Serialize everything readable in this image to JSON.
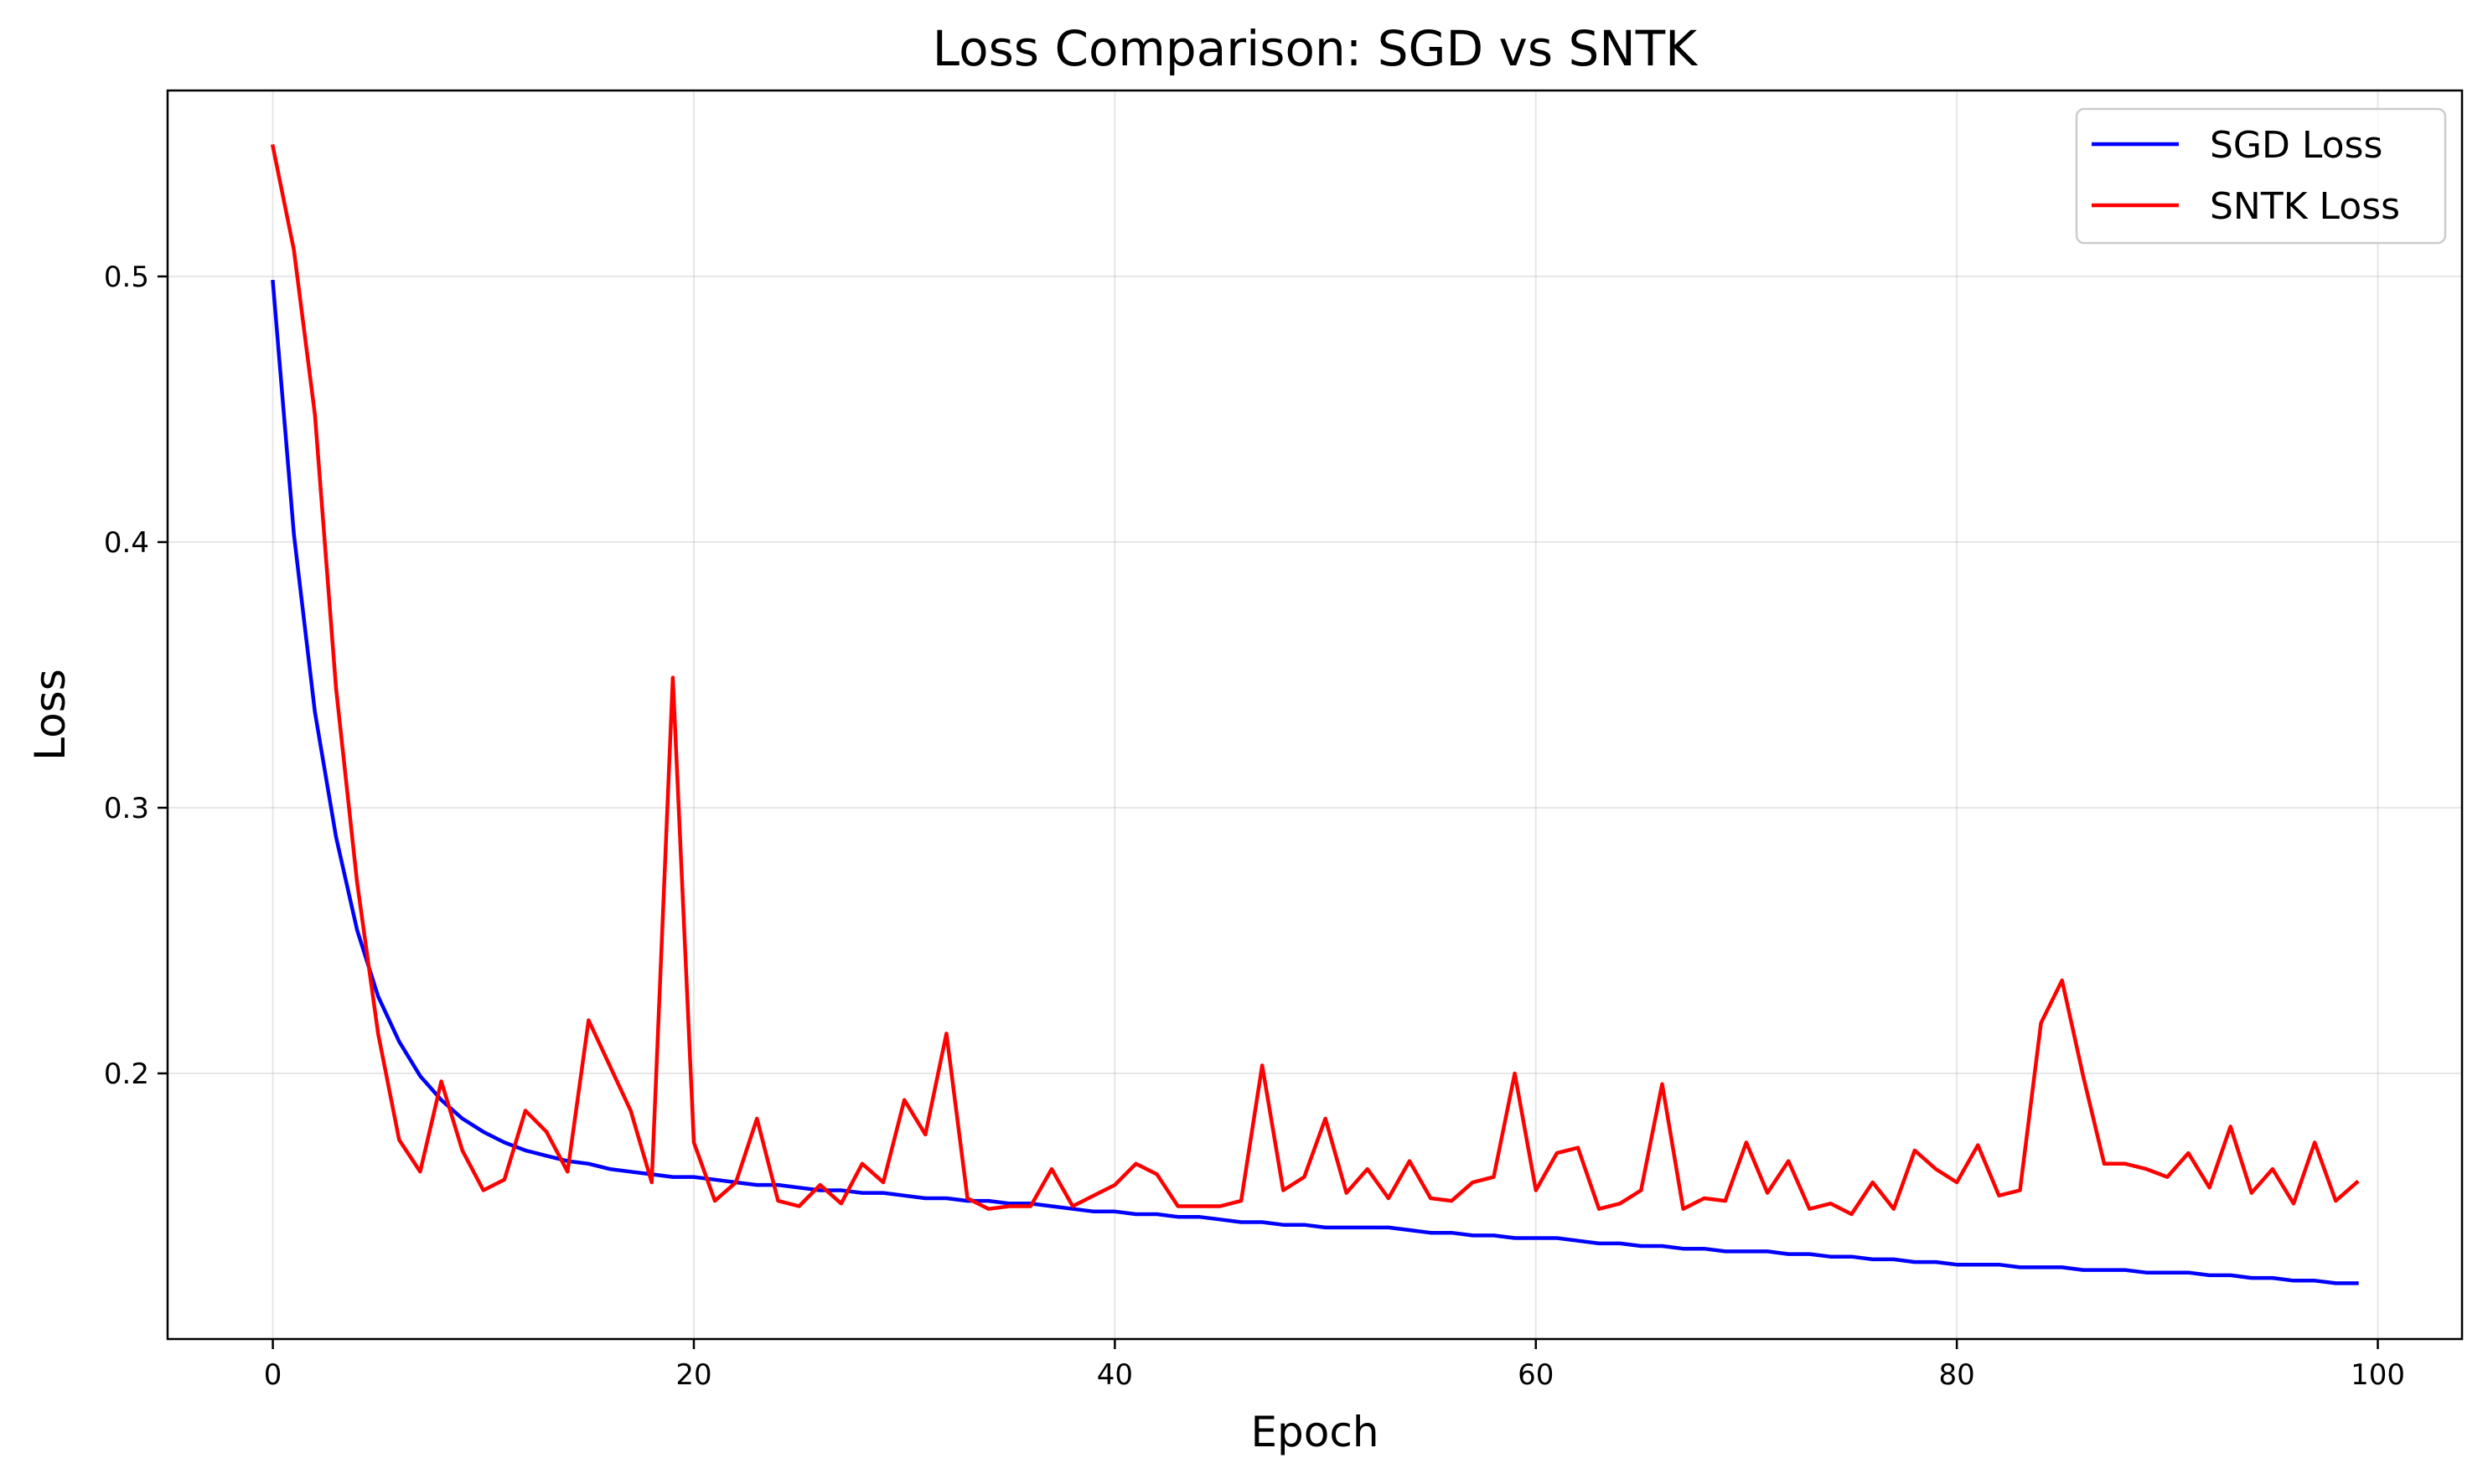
{
  "chart_data": {
    "type": "line",
    "title": "Loss Comparison: SGD vs SNTK",
    "xlabel": "Epoch",
    "ylabel": "Loss",
    "xlim": [
      -5,
      104
    ],
    "ylim": [
      0.1,
      0.57
    ],
    "xticks": [
      0,
      20,
      40,
      60,
      80,
      100
    ],
    "yticks": [
      0.2,
      0.3,
      0.4,
      0.5
    ],
    "xtick_labels": [
      "0",
      "20",
      "40",
      "60",
      "80",
      "100"
    ],
    "ytick_labels": [
      "0.2",
      "0.3",
      "0.4",
      "0.5"
    ],
    "grid": true,
    "legend_position": "top-right",
    "series": [
      {
        "name": "SGD Loss",
        "color": "#0000ff",
        "x": [
          0,
          1,
          2,
          3,
          4,
          5,
          6,
          7,
          8,
          9,
          10,
          11,
          12,
          13,
          14,
          15,
          16,
          17,
          18,
          19,
          20,
          21,
          22,
          23,
          24,
          25,
          26,
          27,
          28,
          29,
          30,
          31,
          32,
          33,
          34,
          35,
          36,
          37,
          38,
          39,
          40,
          41,
          42,
          43,
          44,
          45,
          46,
          47,
          48,
          49,
          50,
          51,
          52,
          53,
          54,
          55,
          56,
          57,
          58,
          59,
          60,
          61,
          62,
          63,
          64,
          65,
          66,
          67,
          68,
          69,
          70,
          71,
          72,
          73,
          74,
          75,
          76,
          77,
          78,
          79,
          80,
          81,
          82,
          83,
          84,
          85,
          86,
          87,
          88,
          89,
          90,
          91,
          92,
          93,
          94,
          95,
          96,
          97,
          98,
          99
        ],
        "values": [
          0.498,
          0.403,
          0.336,
          0.289,
          0.254,
          0.229,
          0.212,
          0.199,
          0.19,
          0.183,
          0.178,
          0.174,
          0.171,
          0.169,
          0.167,
          0.166,
          0.164,
          0.163,
          0.162,
          0.161,
          0.161,
          0.16,
          0.159,
          0.158,
          0.158,
          0.157,
          0.156,
          0.156,
          0.155,
          0.155,
          0.154,
          0.153,
          0.153,
          0.152,
          0.152,
          0.151,
          0.151,
          0.15,
          0.149,
          0.148,
          0.148,
          0.147,
          0.147,
          0.146,
          0.146,
          0.145,
          0.144,
          0.144,
          0.143,
          0.143,
          0.142,
          0.142,
          0.142,
          0.142,
          0.141,
          0.14,
          0.14,
          0.139,
          0.139,
          0.138,
          0.138,
          0.138,
          0.137,
          0.136,
          0.136,
          0.135,
          0.135,
          0.134,
          0.134,
          0.133,
          0.133,
          0.133,
          0.132,
          0.132,
          0.131,
          0.131,
          0.13,
          0.13,
          0.129,
          0.129,
          0.128,
          0.128,
          0.128,
          0.127,
          0.127,
          0.127,
          0.126,
          0.126,
          0.126,
          0.125,
          0.125,
          0.125,
          0.124,
          0.124,
          0.123,
          0.123,
          0.122,
          0.122,
          0.121,
          0.121
        ]
      },
      {
        "name": "SNTK Loss",
        "color": "#ff0000",
        "x": [
          0,
          1,
          2,
          3,
          4,
          5,
          6,
          7,
          8,
          9,
          10,
          11,
          12,
          13,
          14,
          15,
          16,
          17,
          18,
          19,
          20,
          21,
          22,
          23,
          24,
          25,
          26,
          27,
          28,
          29,
          30,
          31,
          32,
          33,
          34,
          35,
          36,
          37,
          38,
          39,
          40,
          41,
          42,
          43,
          44,
          45,
          46,
          47,
          48,
          49,
          50,
          51,
          52,
          53,
          54,
          55,
          56,
          57,
          58,
          59,
          60,
          61,
          62,
          63,
          64,
          65,
          66,
          67,
          68,
          69,
          70,
          71,
          72,
          73,
          74,
          75,
          76,
          77,
          78,
          79,
          80,
          81,
          82,
          83,
          84,
          85,
          86,
          87,
          88,
          89,
          90,
          91,
          92,
          93,
          94,
          95,
          96,
          97,
          98,
          99
        ],
        "values": [
          0.549,
          0.51,
          0.448,
          0.345,
          0.272,
          0.215,
          0.175,
          0.163,
          0.197,
          0.171,
          0.156,
          0.16,
          0.186,
          0.178,
          0.163,
          0.22,
          0.203,
          0.186,
          0.159,
          0.349,
          0.174,
          0.152,
          0.159,
          0.183,
          0.152,
          0.15,
          0.158,
          0.151,
          0.166,
          0.159,
          0.19,
          0.177,
          0.215,
          0.153,
          0.149,
          0.15,
          0.15,
          0.164,
          0.15,
          0.154,
          0.158,
          0.166,
          0.162,
          0.15,
          0.15,
          0.15,
          0.152,
          0.203,
          0.156,
          0.161,
          0.183,
          0.155,
          0.164,
          0.153,
          0.167,
          0.153,
          0.152,
          0.159,
          0.161,
          0.2,
          0.156,
          0.17,
          0.172,
          0.149,
          0.151,
          0.156,
          0.196,
          0.149,
          0.153,
          0.152,
          0.174,
          0.155,
          0.167,
          0.149,
          0.151,
          0.147,
          0.159,
          0.149,
          0.171,
          0.164,
          0.159,
          0.173,
          0.154,
          0.156,
          0.219,
          0.235,
          0.199,
          0.166,
          0.166,
          0.164,
          0.161,
          0.17,
          0.157,
          0.18,
          0.155,
          0.164,
          0.151,
          0.174,
          0.152,
          0.159
        ]
      }
    ]
  }
}
